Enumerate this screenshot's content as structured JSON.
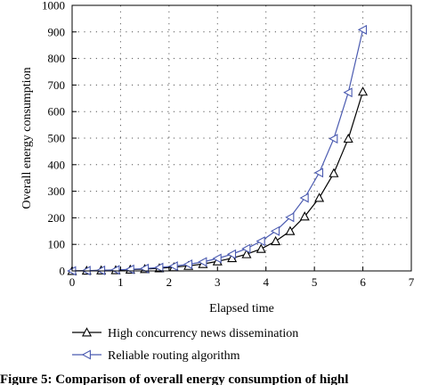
{
  "chart_data": {
    "type": "line",
    "xlabel": "Elapsed time",
    "ylabel": "Overall energy consumption",
    "xlim": [
      0,
      7
    ],
    "ylim": [
      0,
      1000
    ],
    "x_ticks": [
      0,
      1,
      2,
      3,
      4,
      5,
      6,
      7
    ],
    "y_ticks": [
      0,
      100,
      200,
      300,
      400,
      500,
      600,
      700,
      800,
      900,
      1000
    ],
    "grid": "dotted",
    "legend_position": "bottom",
    "series": [
      {
        "name": "High concurrency news dissemination",
        "color": "#000000",
        "marker": "triangle-up",
        "x": [
          0,
          0.3,
          0.6,
          0.9,
          1.2,
          1.5,
          1.8,
          2.1,
          2.4,
          2.7,
          3.0,
          3.3,
          3.6,
          3.9,
          4.2,
          4.5,
          4.8,
          5.1,
          5.4,
          5.7,
          6.0
        ],
        "y": [
          0,
          1,
          2,
          3,
          5,
          7,
          10,
          14,
          19,
          26,
          36,
          48,
          63,
          83,
          112,
          150,
          205,
          275,
          368,
          498,
          675
        ]
      },
      {
        "name": "Reliable routing algorithm",
        "color": "#4a5ab0",
        "marker": "triangle-left",
        "x": [
          0,
          0.3,
          0.6,
          0.9,
          1.2,
          1.5,
          1.8,
          2.1,
          2.4,
          2.7,
          3.0,
          3.3,
          3.6,
          3.9,
          4.2,
          4.5,
          4.8,
          5.1,
          5.4,
          5.7,
          6.0
        ],
        "y": [
          0,
          1,
          2,
          4,
          6,
          9,
          13,
          18,
          25,
          34,
          47,
          63,
          84,
          112,
          150,
          202,
          275,
          370,
          498,
          672,
          908
        ]
      }
    ]
  },
  "caption": "Figure 5: Comparison of overall energy consumption of highl"
}
